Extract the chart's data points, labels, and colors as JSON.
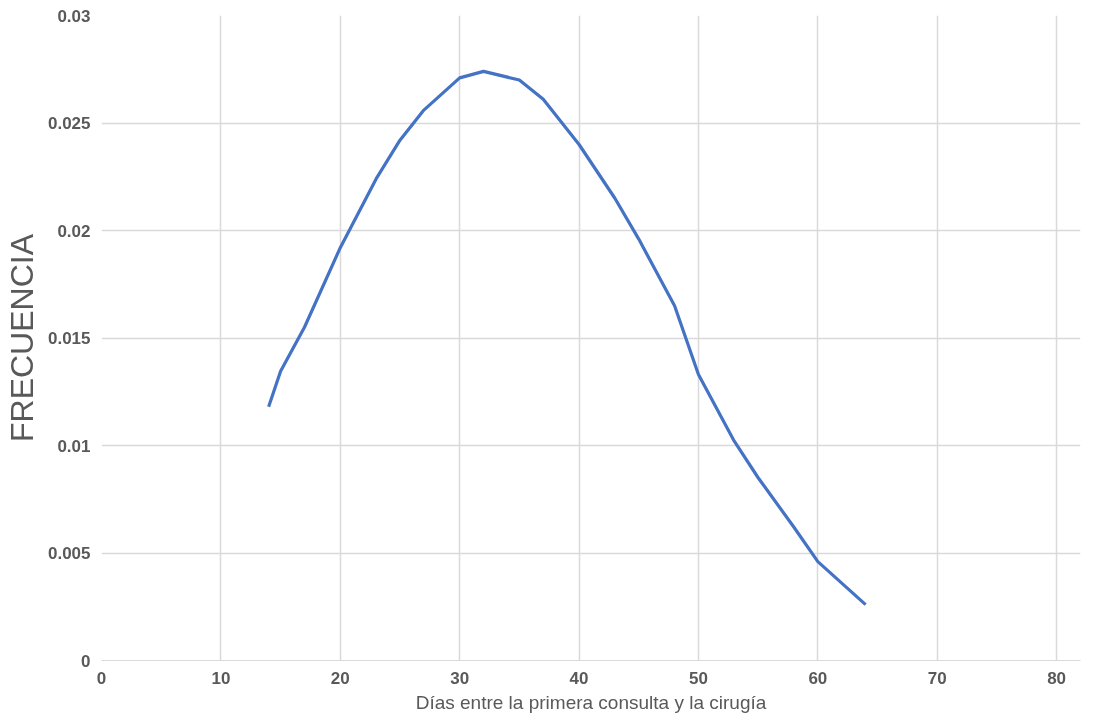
{
  "chart_data": {
    "type": "line",
    "xlabel": "Días entre la primera consulta y la cirugía",
    "ylabel": "FRECUENCIA",
    "x": [
      14,
      15,
      17,
      20,
      23,
      25,
      27,
      30,
      32,
      35,
      37,
      40,
      43,
      45,
      48,
      50,
      53,
      55,
      58,
      60,
      62,
      64
    ],
    "series": [
      {
        "color": "#4472c4",
        "values": [
          0.0118,
          0.01345,
          0.0155,
          0.0192,
          0.0224,
          0.0242,
          0.0256,
          0.0271,
          0.0274,
          0.027,
          0.0261,
          0.024,
          0.0215,
          0.0196,
          0.0165,
          0.0133,
          0.0102,
          0.0085,
          0.0062,
          0.0046,
          0.0036,
          0.0026
        ]
      }
    ],
    "xlim": [
      0,
      82
    ],
    "xticks": [
      0,
      10,
      20,
      30,
      40,
      50,
      60,
      70,
      80
    ],
    "ylim": [
      0,
      0.03
    ],
    "yticks": [
      0,
      0.005,
      0.01,
      0.015,
      0.02,
      0.025,
      0.03
    ],
    "grid": true,
    "marker": "none",
    "line_style": "solid"
  }
}
